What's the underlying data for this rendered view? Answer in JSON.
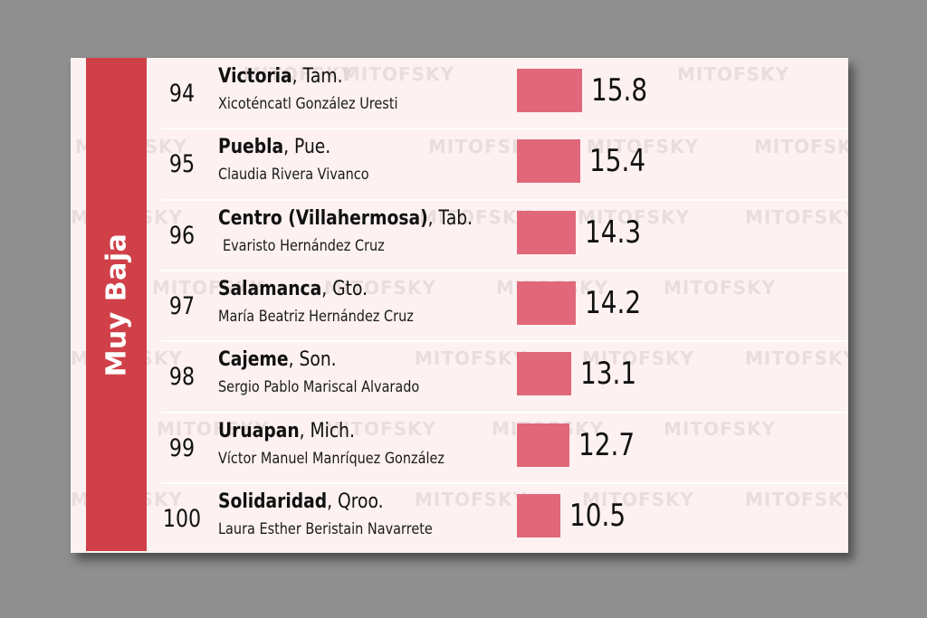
{
  "group_label": "Muy Baja",
  "watermark": "MITOFSKY",
  "colors": {
    "band": "#d04048",
    "bar": "#e0687a",
    "background": "#fdf1f1"
  },
  "rows": [
    {
      "rank": "94",
      "city": "Victoria",
      "state": ", Tam.",
      "person": "Xicoténcatl González Uresti",
      "value": "15.8"
    },
    {
      "rank": "95",
      "city": "Puebla",
      "state": ", Pue.",
      "person": "Claudia Rivera Vivanco",
      "value": "15.4"
    },
    {
      "rank": "96",
      "city": "Centro (Villahermosa)",
      "state": ", Tab.",
      "person": "Evaristo Hernández Cruz",
      "value": "14.3"
    },
    {
      "rank": "97",
      "city": "Salamanca",
      "state": ", Gto.",
      "person": "María Beatriz Hernández Cruz",
      "value": "14.2"
    },
    {
      "rank": "98",
      "city": "Cajeme",
      "state": ", Son.",
      "person": "Sergio Pablo Mariscal Alvarado",
      "value": "13.1"
    },
    {
      "rank": "99",
      "city": "Uruapan",
      "state": ", Mich.",
      "person": "Víctor Manuel Manríquez González",
      "value": "12.7"
    },
    {
      "rank": "100",
      "city": "Solidaridad",
      "state": ", Qroo.",
      "person": "Laura Esther Beristain Navarrete",
      "value": "10.5"
    }
  ],
  "chart_data": {
    "type": "bar",
    "orientation": "horizontal",
    "categories": [
      "Victoria",
      "Puebla",
      "Centro (Villahermosa)",
      "Salamanca",
      "Cajeme",
      "Uruapan",
      "Solidaridad"
    ],
    "values": [
      15.8,
      15.4,
      14.3,
      14.2,
      13.1,
      12.7,
      10.5
    ],
    "title": "",
    "xlabel": "",
    "ylabel": "",
    "grid": false,
    "legend": "none"
  }
}
